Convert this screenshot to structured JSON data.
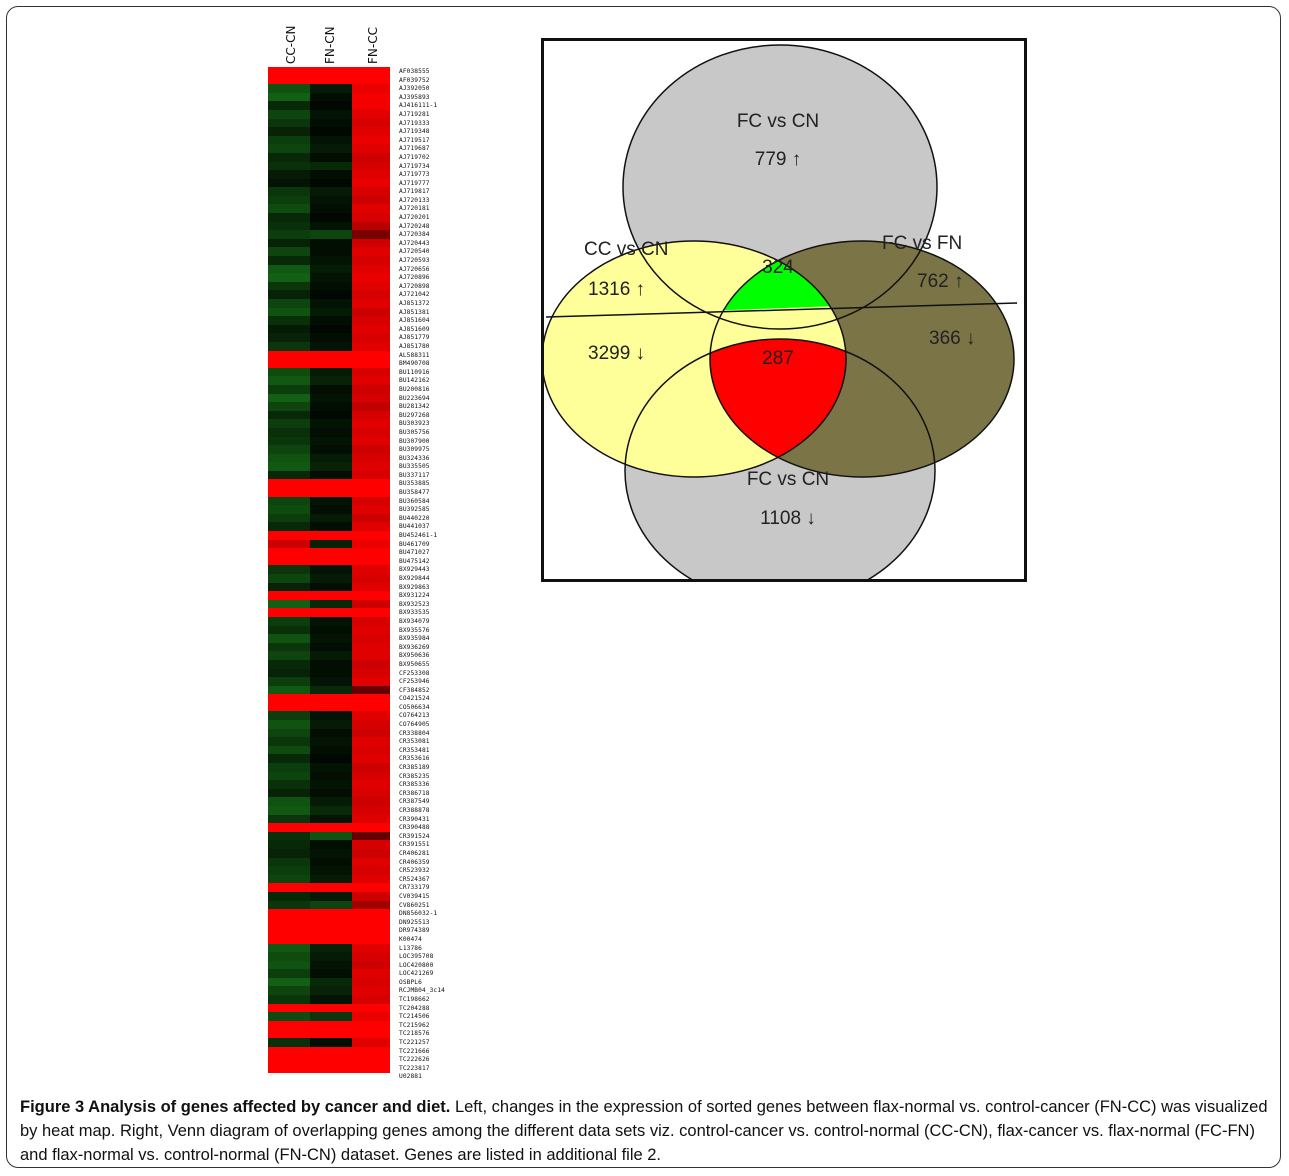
{
  "heatmap": {
    "columns": [
      "CC-CN",
      "FN-CN",
      "FN-CC"
    ],
    "genes": [
      "AF038555",
      "AF039752",
      "AJ392050",
      "AJ395893",
      "AJ416111-1",
      "AJ719281",
      "AJ719333",
      "AJ719348",
      "AJ719517",
      "AJ719687",
      "AJ719702",
      "AJ719734",
      "AJ719773",
      "AJ719777",
      "AJ719817",
      "AJ720133",
      "AJ720181",
      "AJ720201",
      "AJ720248",
      "AJ720384",
      "AJ720443",
      "AJ720540",
      "AJ720593",
      "AJ720656",
      "AJ720896",
      "AJ720898",
      "AJ721042",
      "AJ851372",
      "AJ851381",
      "AJ851604",
      "AJ851609",
      "AJ851779",
      "AJ851780",
      "AL588311",
      "BM490708",
      "BU110916",
      "BU142162",
      "BU200816",
      "BU223694",
      "BU281342",
      "BU297268",
      "BU303923",
      "BU305756",
      "BU307900",
      "BU309975",
      "BU324336",
      "BU335505",
      "BU337117",
      "BU353885",
      "BU358477",
      "BU360584",
      "BU392585",
      "BU440220",
      "BU441037",
      "BU452461-1",
      "BU461709",
      "BU471027",
      "BU475142",
      "BX929443",
      "BX929844",
      "BX929863",
      "BX931224",
      "BX932523",
      "BX933535",
      "BX934079",
      "BX935576",
      "BX935984",
      "BX936269",
      "BX950636",
      "BX950655",
      "CF253308",
      "CF253946",
      "CF384852",
      "CO421524",
      "CO506634",
      "CO764213",
      "CO764905",
      "CR338804",
      "CR353081",
      "CR353481",
      "CR353616",
      "CR385189",
      "CR385235",
      "CR385336",
      "CR386718",
      "CR387549",
      "CR388878",
      "CR390431",
      "CR390488",
      "CR391524",
      "CR391551",
      "CR406281",
      "CR406359",
      "CR523932",
      "CR524367",
      "CR733179",
      "CV039415",
      "CV860251",
      "DN856032-1",
      "DN925513",
      "DR974389",
      "K00474",
      "L13786",
      "LOC395708",
      "LOC420800",
      "LOC421269",
      "OSBPL6",
      "RCJMB04_3c14",
      "TC198662",
      "TC204288",
      "TC214506",
      "TC215962",
      "TC218576",
      "TC221257",
      "TC221666",
      "TC222626",
      "TC223817",
      "U02881"
    ],
    "values": [
      [
        2.5,
        2.5,
        2.5
      ],
      [
        2.5,
        2.5,
        2.5
      ],
      [
        -1.2,
        -0.4,
        2.3
      ],
      [
        -1.4,
        -0.2,
        2.4
      ],
      [
        -0.6,
        -0.1,
        2.4
      ],
      [
        -1.0,
        -0.3,
        2.2
      ],
      [
        -0.8,
        -0.2,
        2.1
      ],
      [
        -0.5,
        -0.1,
        2.2
      ],
      [
        -0.9,
        -0.3,
        2.3
      ],
      [
        -1.0,
        -0.4,
        2.2
      ],
      [
        -0.6,
        -0.2,
        2.0
      ],
      [
        -0.7,
        -0.6,
        2.1
      ],
      [
        -0.4,
        -0.2,
        2.2
      ],
      [
        -0.3,
        -0.1,
        2.3
      ],
      [
        -0.8,
        -0.4,
        2.1
      ],
      [
        -0.9,
        -0.3,
        2.0
      ],
      [
        -1.1,
        -0.2,
        2.2
      ],
      [
        -0.6,
        -0.1,
        2.1
      ],
      [
        -0.7,
        -0.3,
        1.8
      ],
      [
        -0.9,
        -1.0,
        1.2
      ],
      [
        -0.5,
        -0.2,
        2.0
      ],
      [
        -1.0,
        -0.2,
        2.2
      ],
      [
        -0.6,
        -0.3,
        2.1
      ],
      [
        -1.3,
        -0.4,
        2.2
      ],
      [
        -1.4,
        -0.3,
        2.3
      ],
      [
        -0.8,
        -0.2,
        2.2
      ],
      [
        -0.5,
        -0.1,
        2.1
      ],
      [
        -1.0,
        -0.3,
        2.2
      ],
      [
        -1.2,
        -0.4,
        2.0
      ],
      [
        -0.7,
        -0.2,
        2.1
      ],
      [
        -0.4,
        -0.1,
        2.2
      ],
      [
        -0.5,
        -0.2,
        2.1
      ],
      [
        -0.8,
        -0.3,
        2.2
      ],
      [
        2.5,
        2.5,
        2.5
      ],
      [
        2.5,
        2.5,
        2.5
      ],
      [
        -1.1,
        -0.4,
        2.1
      ],
      [
        -1.3,
        -0.5,
        2.2
      ],
      [
        -0.9,
        -0.2,
        2.0
      ],
      [
        -1.4,
        -0.3,
        2.1
      ],
      [
        -1.0,
        -0.2,
        1.9
      ],
      [
        -0.6,
        -0.1,
        2.1
      ],
      [
        -0.9,
        -0.3,
        2.2
      ],
      [
        -0.7,
        -0.2,
        2.1
      ],
      [
        -0.8,
        -0.3,
        2.2
      ],
      [
        -1.0,
        -0.2,
        2.0
      ],
      [
        -1.2,
        -0.4,
        2.1
      ],
      [
        -1.3,
        -0.5,
        2.2
      ],
      [
        -0.6,
        -0.2,
        2.1
      ],
      [
        2.5,
        2.5,
        2.5
      ],
      [
        2.5,
        2.5,
        2.5
      ],
      [
        -1.0,
        -0.3,
        2.1
      ],
      [
        -1.1,
        -0.2,
        2.2
      ],
      [
        -0.9,
        -0.4,
        2.0
      ],
      [
        -0.6,
        -0.2,
        2.2
      ],
      [
        2.5,
        2.5,
        2.5
      ],
      [
        2.0,
        -0.5,
        2.3
      ],
      [
        2.5,
        2.5,
        2.5
      ],
      [
        2.5,
        2.5,
        2.5
      ],
      [
        -0.8,
        -0.3,
        2.2
      ],
      [
        -1.0,
        -0.4,
        2.1
      ],
      [
        -0.5,
        -0.2,
        2.2
      ],
      [
        2.5,
        2.5,
        2.5
      ],
      [
        -1.4,
        -0.6,
        2.0
      ],
      [
        2.5,
        2.5,
        2.5
      ],
      [
        -0.9,
        -0.3,
        2.1
      ],
      [
        -0.7,
        -0.2,
        2.2
      ],
      [
        -1.2,
        -0.3,
        2.1
      ],
      [
        -0.8,
        -0.2,
        2.2
      ],
      [
        -1.0,
        -0.4,
        2.2
      ],
      [
        -0.6,
        -0.2,
        2.0
      ],
      [
        -0.5,
        -0.2,
        2.1
      ],
      [
        -0.9,
        -0.3,
        2.2
      ],
      [
        -1.3,
        -0.6,
        1.0
      ],
      [
        2.5,
        2.5,
        2.5
      ],
      [
        2.5,
        2.5,
        2.5
      ],
      [
        -0.9,
        -0.3,
        2.2
      ],
      [
        -1.2,
        -0.4,
        2.1
      ],
      [
        -1.0,
        -0.2,
        2.0
      ],
      [
        -0.8,
        -0.3,
        2.2
      ],
      [
        -1.1,
        -0.2,
        2.1
      ],
      [
        -0.6,
        -0.1,
        2.2
      ],
      [
        -0.9,
        -0.3,
        2.0
      ],
      [
        -1.0,
        -0.2,
        2.1
      ],
      [
        -0.7,
        -0.3,
        2.2
      ],
      [
        -0.5,
        -0.2,
        2.1
      ],
      [
        -1.2,
        -0.4,
        2.0
      ],
      [
        -1.3,
        -0.6,
        2.1
      ],
      [
        -0.8,
        -0.3,
        2.2
      ],
      [
        2.5,
        2.5,
        2.5
      ],
      [
        -0.7,
        -1.2,
        1.0
      ],
      [
        -0.6,
        -0.2,
        2.1
      ],
      [
        -0.5,
        -0.3,
        2.0
      ],
      [
        -0.8,
        -0.2,
        2.2
      ],
      [
        -0.9,
        -0.3,
        2.1
      ],
      [
        -1.0,
        -0.4,
        2.2
      ],
      [
        2.5,
        2.5,
        2.5
      ],
      [
        -0.6,
        -0.4,
        2.0
      ],
      [
        -0.8,
        -1.0,
        1.6
      ],
      [
        2.5,
        2.5,
        2.5
      ],
      [
        2.5,
        2.5,
        2.5
      ],
      [
        2.5,
        2.5,
        2.5
      ],
      [
        2.5,
        2.5,
        2.5
      ],
      [
        -1.3,
        -0.5,
        2.2
      ],
      [
        -1.1,
        -0.4,
        2.1
      ],
      [
        -1.2,
        -0.3,
        2.0
      ],
      [
        -0.9,
        -0.2,
        2.2
      ],
      [
        -1.4,
        -0.6,
        2.1
      ],
      [
        -1.0,
        -0.5,
        2.2
      ],
      [
        -0.8,
        -0.3,
        2.1
      ],
      [
        2.5,
        2.5,
        2.5
      ],
      [
        -1.1,
        -0.8,
        2.3
      ],
      [
        2.5,
        2.5,
        2.5
      ],
      [
        2.5,
        2.5,
        2.5
      ],
      [
        -0.7,
        -0.2,
        2.2
      ],
      [
        2.5,
        2.5,
        2.5
      ],
      [
        2.5,
        2.5,
        2.5
      ],
      [
        2.5,
        2.5,
        2.5
      ]
    ],
    "colors": {
      "high": "#ff0000",
      "low": "#22aa22",
      "mid": "#000000"
    }
  },
  "venn": {
    "top_label": "FC vs CN",
    "top_value": "779 ↑",
    "left_label": "CC vs CN",
    "left_up": "1316 ↑",
    "left_down": "3299 ↓",
    "right_label": "FC vs FN",
    "right_up": "762 ↑",
    "right_down": "366 ↓",
    "center_up": "324",
    "center_down": "287",
    "bottom_label": "FC vs CN",
    "bottom_value": "1108 ↓",
    "colors": {
      "gray": "#c8c8c8",
      "yellow": "#ffff99",
      "olive": "#7a7446",
      "green": "#00ff00",
      "red": "#ff0000"
    }
  },
  "caption": {
    "title": "Figure 3 Analysis of genes affected by cancer and diet.",
    "body": "Left, changes in the expression of sorted genes between flax-normal vs. control-cancer (FN-CC) was visualized by heat map. Right, Venn diagram of overlapping genes among the different data sets viz. control-cancer vs. control-normal (CC-CN), flax-cancer vs. flax-normal (FC-FN) and flax-normal vs. control-normal (FN-CN) dataset. Genes are listed in additional file 2."
  }
}
